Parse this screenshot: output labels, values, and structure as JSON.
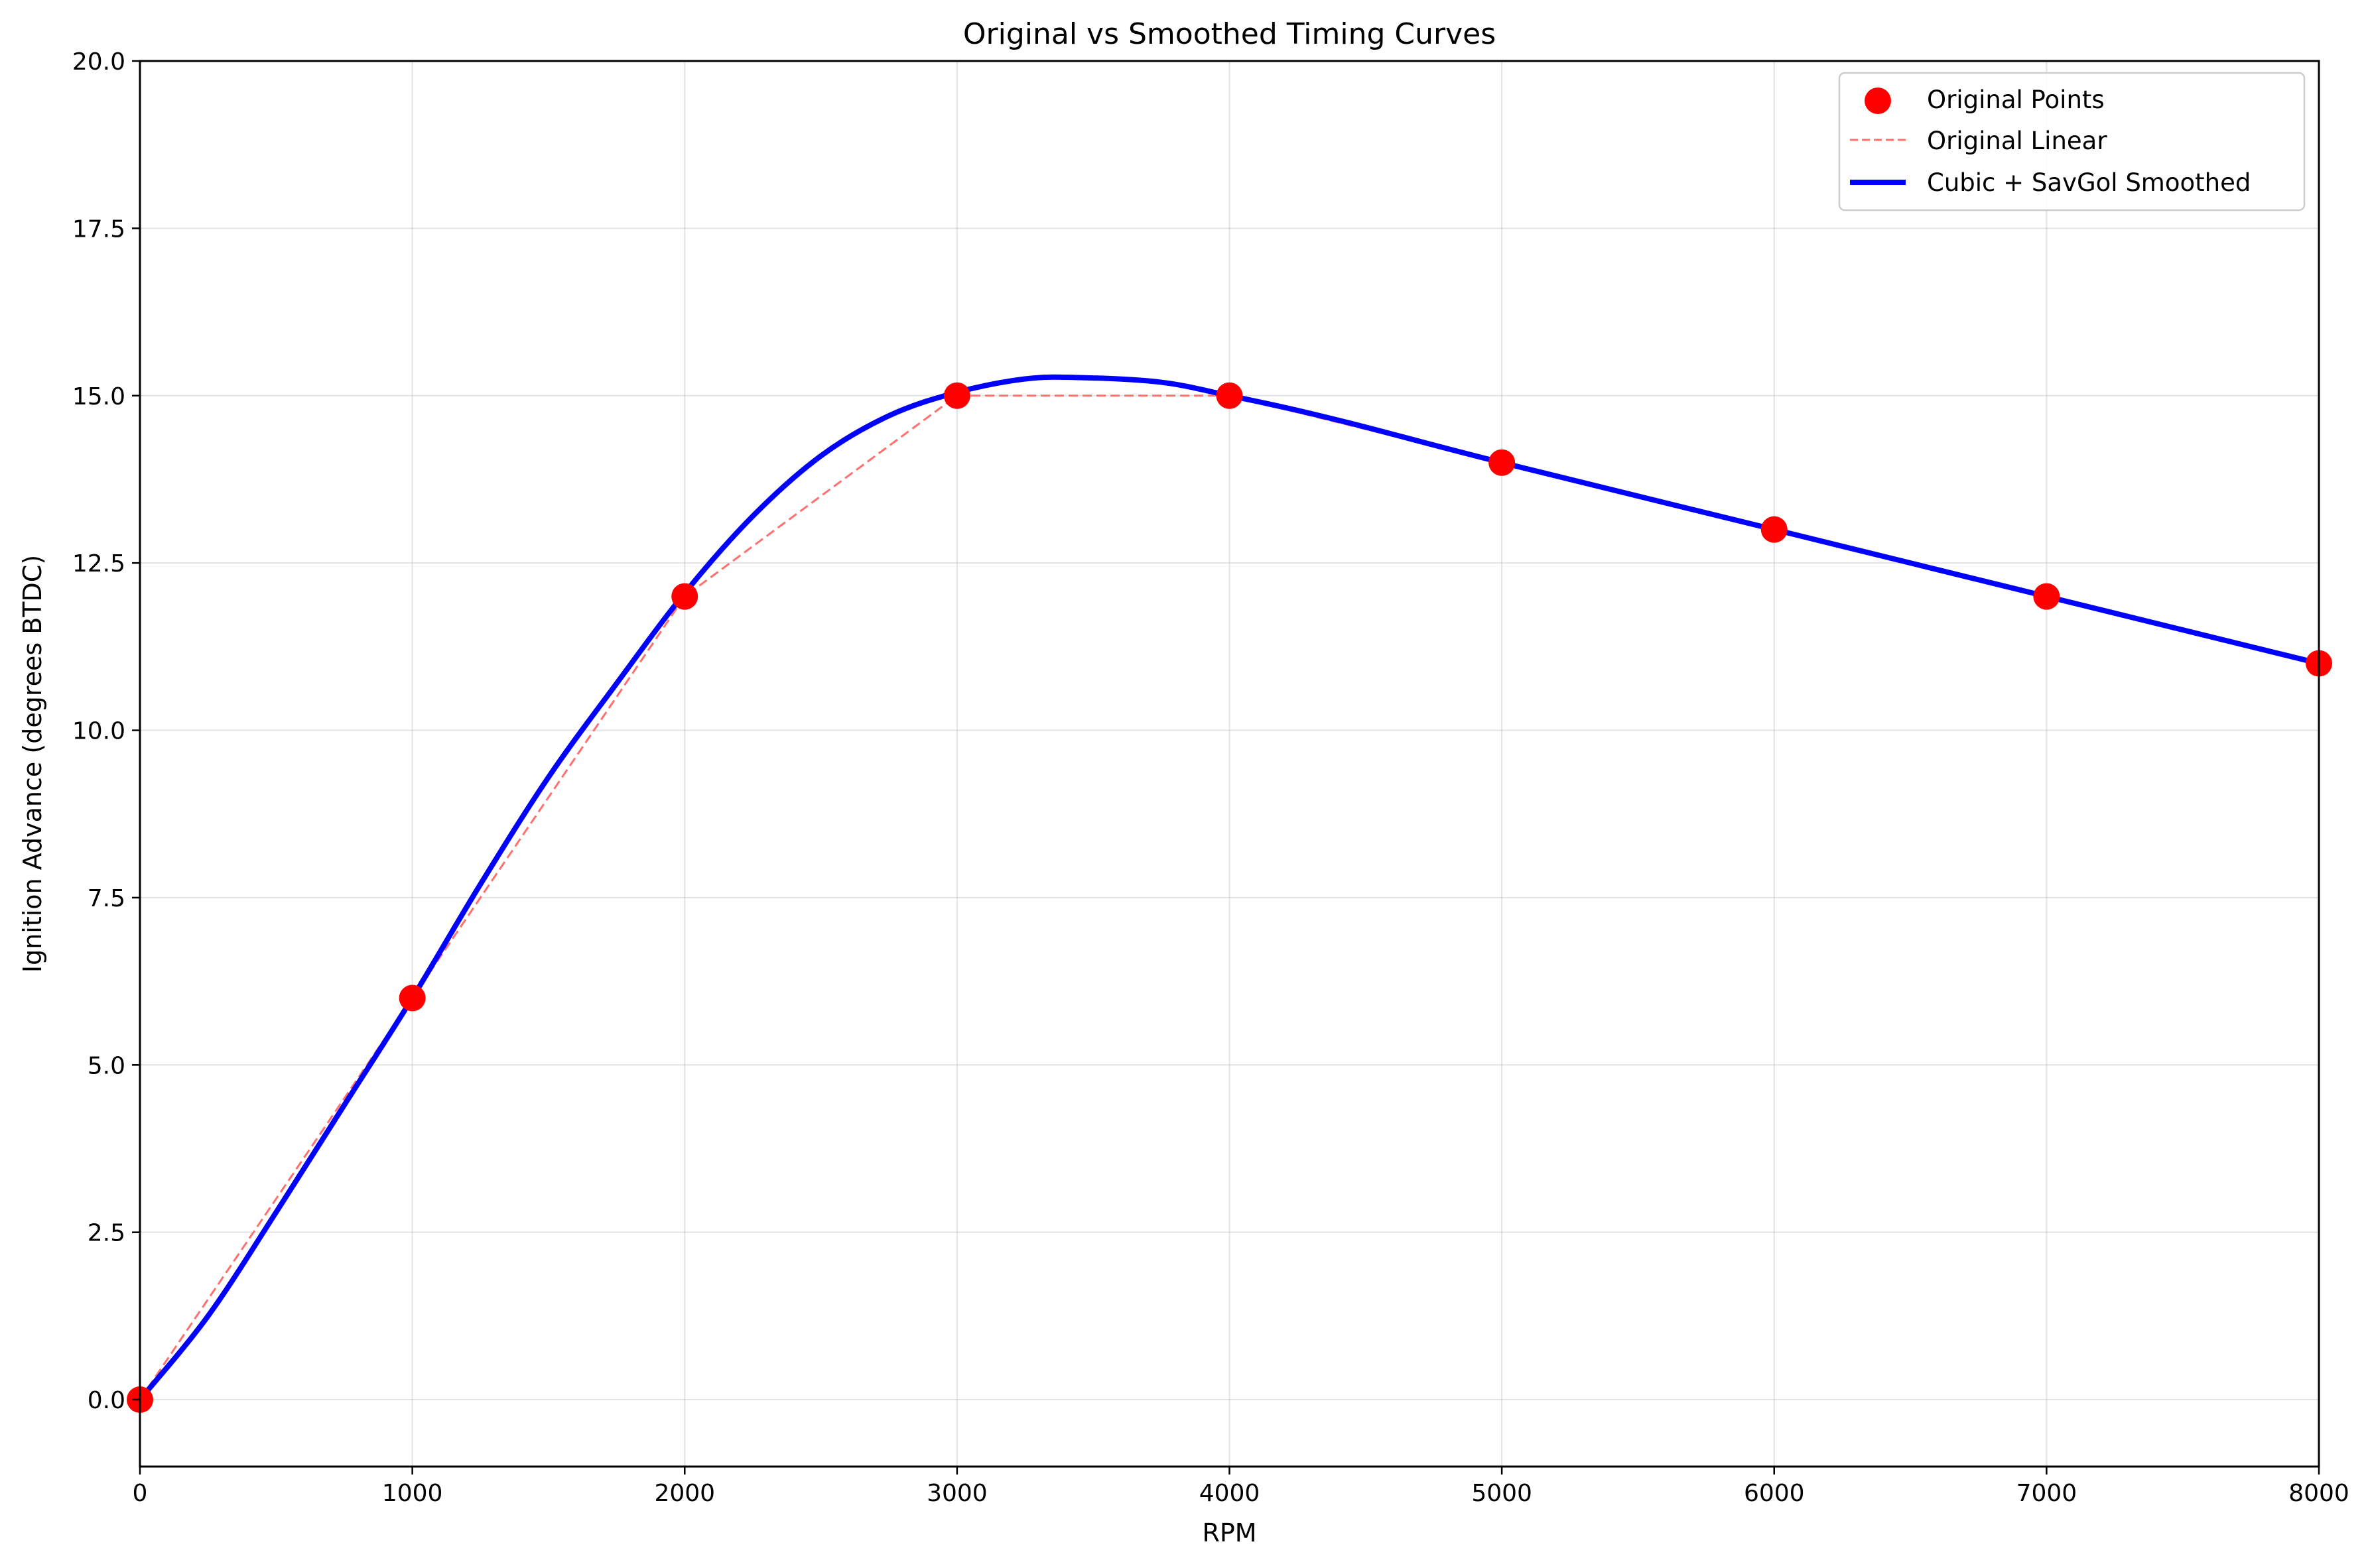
{
  "chart_data": {
    "type": "line",
    "title": "Original vs Smoothed Timing Curves",
    "xlabel": "RPM",
    "ylabel": "Ignition Advance (degrees BTDC)",
    "xlim": [
      0,
      8000
    ],
    "ylim": [
      -1,
      20
    ],
    "x_ticks": [
      0,
      1000,
      2000,
      3000,
      4000,
      5000,
      6000,
      7000,
      8000
    ],
    "x_tick_labels": [
      "0",
      "1000",
      "2000",
      "3000",
      "4000",
      "5000",
      "6000",
      "7000",
      "8000"
    ],
    "y_ticks": [
      0,
      2.5,
      5,
      7.5,
      10,
      12.5,
      15,
      17.5,
      20
    ],
    "y_tick_labels": [
      "0.0",
      "2.5",
      "5.0",
      "7.5",
      "10.0",
      "12.5",
      "15.0",
      "17.5",
      "20.0"
    ],
    "grid": true,
    "legend_position": "top-right",
    "series": [
      {
        "name": "Original Points",
        "kind": "scatter",
        "color": "#ff0000",
        "x": [
          0,
          1000,
          2000,
          3000,
          4000,
          5000,
          6000,
          7000,
          8000
        ],
        "y": [
          0,
          6,
          12,
          15,
          15,
          14,
          13,
          12,
          11
        ]
      },
      {
        "name": "Original Linear",
        "kind": "line-dashed",
        "color": "#ff7070",
        "x": [
          0,
          1000,
          2000,
          3000,
          4000,
          5000,
          6000,
          7000,
          8000
        ],
        "y": [
          0,
          6,
          12,
          15,
          15,
          14,
          13,
          12,
          11
        ]
      },
      {
        "name": "Cubic + SavGol Smoothed",
        "kind": "line",
        "color": "#0000ff",
        "x": [
          0,
          250,
          500,
          750,
          1000,
          1250,
          1500,
          1750,
          2000,
          2250,
          2500,
          2750,
          3000,
          3250,
          3450,
          3750,
          4000,
          4250,
          4500,
          5000,
          6000,
          7000,
          8000
        ],
        "y": [
          0,
          1.25,
          2.8,
          4.4,
          6.0,
          7.7,
          9.3,
          10.7,
          12.05,
          13.2,
          14.1,
          14.7,
          15.05,
          15.25,
          15.27,
          15.2,
          15.0,
          14.78,
          14.53,
          14.0,
          13.0,
          12.0,
          11.0
        ]
      }
    ]
  }
}
